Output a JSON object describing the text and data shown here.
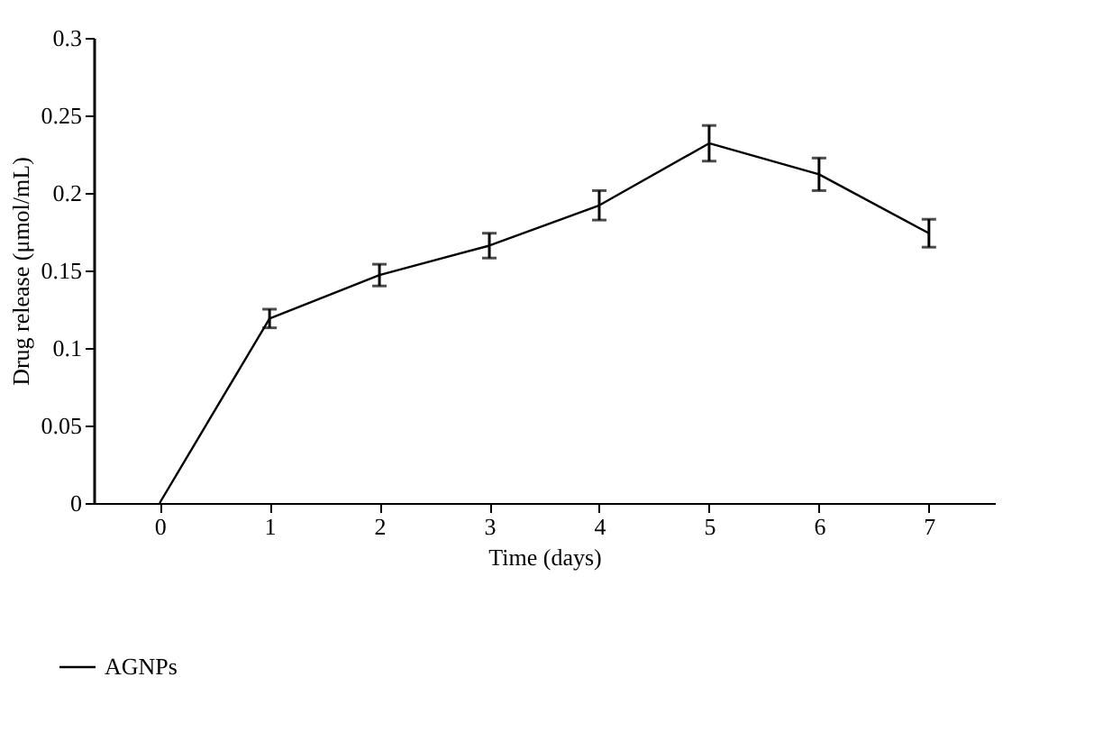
{
  "chart_data": {
    "type": "line",
    "xlabel": "Time (days)",
    "ylabel": "Drug release (μmol/mL)",
    "categories": [
      "0",
      "1",
      "2",
      "3",
      "4",
      "5",
      "6",
      "7"
    ],
    "series": [
      {
        "name": "AGNPs",
        "color": "#000000",
        "values": [
          0,
          0.119,
          0.147,
          0.166,
          0.192,
          0.232,
          0.212,
          0.174
        ],
        "errors": [
          null,
          0.006,
          0.007,
          0.008,
          0.0095,
          0.0115,
          0.0105,
          0.009
        ]
      }
    ],
    "ylim": [
      0,
      0.3
    ],
    "yticks": [
      0,
      0.05,
      0.1,
      0.15,
      0.2,
      0.25,
      0.3
    ],
    "grid": false,
    "legend": "bottom left",
    "marker": "none",
    "line_style": "solid"
  }
}
